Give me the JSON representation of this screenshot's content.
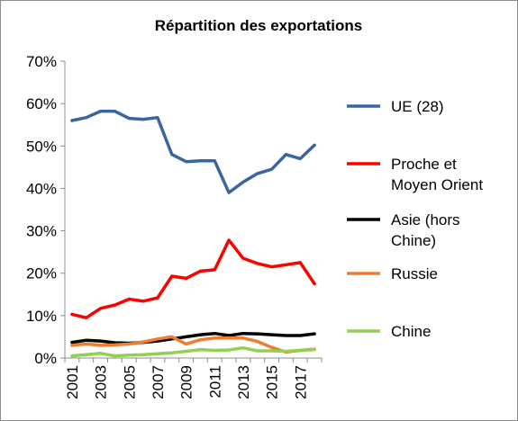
{
  "chart_data": {
    "type": "line",
    "title": "Répartition des exportations",
    "xlabel": "",
    "ylabel": "",
    "x": [
      2001,
      2002,
      2003,
      2004,
      2005,
      2006,
      2007,
      2008,
      2009,
      2010,
      2011,
      2012,
      2013,
      2014,
      2015,
      2016,
      2017,
      2018
    ],
    "x_tick_labels": [
      "2001",
      "2003",
      "2005",
      "2007",
      "2009",
      "2011",
      "2013",
      "2015",
      "2017"
    ],
    "ylim": [
      0,
      70
    ],
    "y_tick_labels": [
      "0%",
      "10%",
      "20%",
      "30%",
      "40%",
      "50%",
      "60%",
      "70%"
    ],
    "grid": false,
    "legend_position": "right",
    "series": [
      {
        "name": "UE (28)",
        "legend_lines": [
          "UE (28)"
        ],
        "color": "#3a65a0",
        "values": [
          56.0,
          56.7,
          58.2,
          58.2,
          56.5,
          56.3,
          56.7,
          48.0,
          46.3,
          46.5,
          46.5,
          39.0,
          41.5,
          43.5,
          44.5,
          48.0,
          47.0,
          50.2
        ]
      },
      {
        "name": "Proche et Moyen Orient",
        "legend_lines": [
          "Proche et",
          "Moyen Orient"
        ],
        "color": "#ff0000",
        "values": [
          10.3,
          9.5,
          11.7,
          12.5,
          13.9,
          13.4,
          14.2,
          19.3,
          18.8,
          20.5,
          20.8,
          27.8,
          23.5,
          22.3,
          21.5,
          22.0,
          22.5,
          17.5
        ]
      },
      {
        "name": "Asie (hors Chine)",
        "legend_lines": [
          "Asie (hors",
          "Chine)"
        ],
        "color": "#000000",
        "values": [
          3.7,
          4.2,
          4.0,
          3.6,
          3.5,
          3.7,
          4.0,
          4.5,
          5.0,
          5.5,
          5.8,
          5.3,
          5.8,
          5.7,
          5.5,
          5.3,
          5.3,
          5.7
        ]
      },
      {
        "name": "Russie",
        "legend_lines": [
          "Russie"
        ],
        "color": "#ed7d31",
        "values": [
          3.0,
          3.3,
          3.0,
          3.1,
          3.3,
          3.8,
          4.5,
          5.0,
          3.3,
          4.3,
          4.7,
          4.7,
          4.7,
          3.9,
          2.5,
          1.4,
          1.8,
          2.1
        ]
      },
      {
        "name": "Chine",
        "legend_lines": [
          "Chine"
        ],
        "color": "#92d050",
        "values": [
          0.5,
          0.8,
          1.1,
          0.5,
          0.7,
          0.8,
          1.0,
          1.2,
          1.6,
          2.0,
          1.8,
          1.9,
          2.4,
          1.7,
          1.7,
          1.6,
          1.8,
          2.0
        ]
      }
    ]
  }
}
